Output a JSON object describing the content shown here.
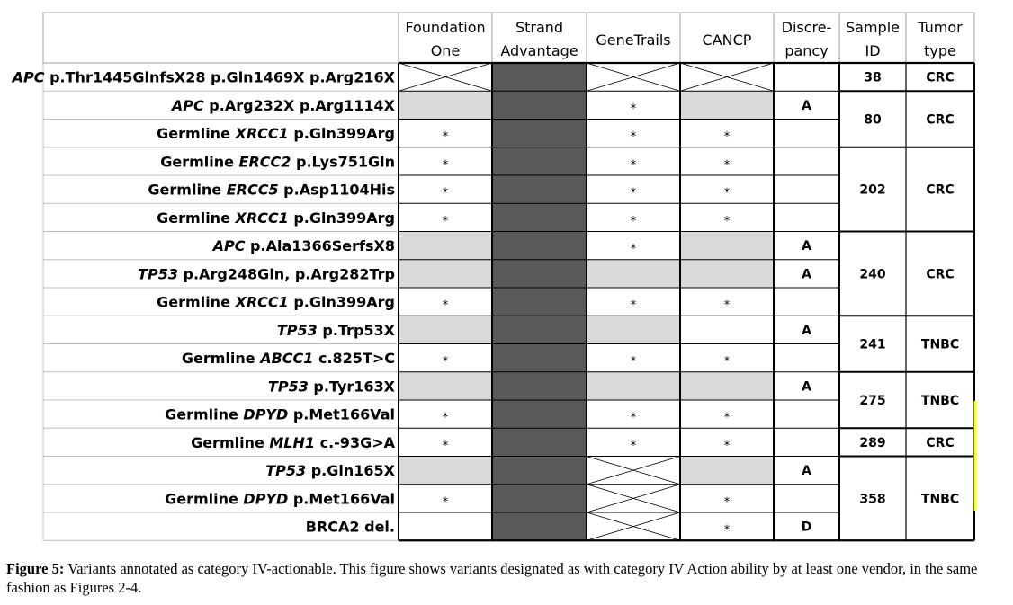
{
  "figure": {
    "headers": {
      "foundation_one": [
        "Foundation",
        "One"
      ],
      "strand_advantage": [
        "Strand",
        "Advantage"
      ],
      "genetrails": [
        "GeneTrails"
      ],
      "cancp": [
        "CANCP"
      ],
      "discrepancy": [
        "Discre-",
        "pancy"
      ],
      "sample_id": [
        "Sample",
        "ID"
      ],
      "tumor_type": [
        "Tumor",
        "type"
      ]
    },
    "rows": [
      {
        "prefix": "",
        "gene": "APC",
        "variant": "p.Thr1445GlnfsX28 p.Gln1469X p.Arg216X",
        "cells": [
          "x",
          "dark",
          "x",
          "x"
        ],
        "discrepancy": ""
      },
      {
        "prefix": "",
        "gene": "APC",
        "variant": "p.Arg232X p.Arg1114X",
        "cells": [
          "gray",
          "dark",
          "star",
          "gray"
        ],
        "discrepancy": "A"
      },
      {
        "prefix": "Germline",
        "gene": "XRCC1",
        "variant": "p.Gln399Arg",
        "cells": [
          "star",
          "dark",
          "star",
          "star"
        ],
        "discrepancy": ""
      },
      {
        "prefix": "Germline",
        "gene": "ERCC2",
        "variant": "p.Lys751Gln",
        "cells": [
          "star",
          "dark",
          "star",
          "star"
        ],
        "discrepancy": ""
      },
      {
        "prefix": "Germline",
        "gene": "ERCC5",
        "variant": "p.Asp1104His",
        "cells": [
          "star",
          "dark",
          "star",
          "star"
        ],
        "discrepancy": ""
      },
      {
        "prefix": "Germline",
        "gene": "XRCC1",
        "variant": "p.Gln399Arg",
        "cells": [
          "star",
          "dark",
          "star",
          "star"
        ],
        "discrepancy": ""
      },
      {
        "prefix": "",
        "gene": "APC",
        "variant": "p.Ala1366SerfsX8",
        "cells": [
          "gray",
          "dark",
          "star",
          "gray"
        ],
        "discrepancy": "A"
      },
      {
        "prefix": "",
        "gene": "TP53",
        "variant": "p.Arg248Gln, p.Arg282Trp",
        "cells": [
          "gray",
          "dark",
          "gray",
          "gray"
        ],
        "discrepancy": "A"
      },
      {
        "prefix": "Germline",
        "gene": "XRCC1",
        "variant": "p.Gln399Arg",
        "cells": [
          "star",
          "dark",
          "star",
          "star"
        ],
        "discrepancy": ""
      },
      {
        "prefix": "",
        "gene": "TP53",
        "variant": "p.Trp53X",
        "cells": [
          "gray",
          "dark",
          "gray",
          "white"
        ],
        "discrepancy": "A"
      },
      {
        "prefix": "Germline",
        "gene": "ABCC1",
        "variant": "c.825T>C",
        "cells": [
          "star",
          "dark",
          "star",
          "star"
        ],
        "discrepancy": ""
      },
      {
        "prefix": "",
        "gene": "TP53",
        "variant": "p.Tyr163X",
        "cells": [
          "gray",
          "dark",
          "gray",
          "gray"
        ],
        "discrepancy": "A"
      },
      {
        "prefix": "Germline",
        "gene": "DPYD",
        "variant": "p.Met166Val",
        "cells": [
          "star",
          "dark",
          "star",
          "star"
        ],
        "discrepancy": ""
      },
      {
        "prefix": "Germline",
        "gene": "MLH1",
        "variant": "c.-93G>A",
        "cells": [
          "star",
          "dark",
          "star",
          "star"
        ],
        "discrepancy": ""
      },
      {
        "prefix": "",
        "gene": "TP53",
        "variant": "p.Gln165X",
        "cells": [
          "gray",
          "dark",
          "x",
          "gray"
        ],
        "discrepancy": "A"
      },
      {
        "prefix": "Germline",
        "gene": "DPYD",
        "variant": "p.Met166Val",
        "cells": [
          "star",
          "dark",
          "x",
          "star"
        ],
        "discrepancy": ""
      },
      {
        "prefix": "",
        "gene": "",
        "variant": "BRCA2 del.",
        "cells": [
          "white",
          "dark",
          "x",
          "star"
        ],
        "discrepancy": "D"
      }
    ],
    "samples": [
      {
        "id": "38",
        "tumor": "CRC",
        "start": 0,
        "span": 1
      },
      {
        "id": "80",
        "tumor": "CRC",
        "start": 1,
        "span": 2
      },
      {
        "id": "202",
        "tumor": "CRC",
        "start": 3,
        "span": 3
      },
      {
        "id": "240",
        "tumor": "CRC",
        "start": 6,
        "span": 3
      },
      {
        "id": "241",
        "tumor": "TNBC",
        "start": 9,
        "span": 2
      },
      {
        "id": "275",
        "tumor": "TNBC",
        "start": 11,
        "span": 2
      },
      {
        "id": "289",
        "tumor": "CRC",
        "start": 13,
        "span": 1
      },
      {
        "id": "358",
        "tumor": "TNBC",
        "start": 14,
        "span": 3
      }
    ],
    "star_symbol": "*",
    "colors": {
      "dark": "#595959",
      "gray": "#d9d9d9",
      "border": "#000000",
      "grid": "#bfbfbf",
      "highlight": "#ffff00"
    }
  },
  "caption": {
    "label": "Figure 5:",
    "text": "Variants annotated as category IV-actionable. This figure shows variants designated as with category IV Action ability by at least one vendor, in the same fashion as Figures 2-4."
  }
}
